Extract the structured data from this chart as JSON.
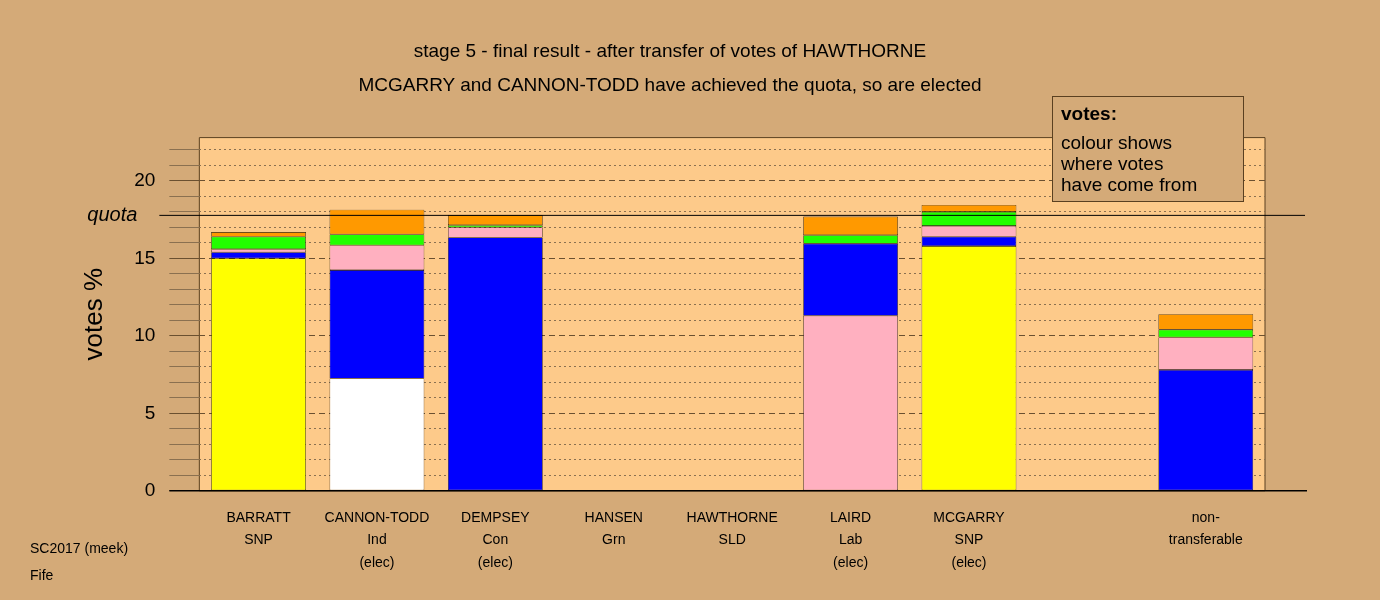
{
  "chart_data": {
    "type": "bar",
    "stacked": true,
    "title": "stage 5 - final result - after transfer of votes of HAWTHORNE",
    "subtitle": "MCGARRY and CANNON-TODD have achieved the quota, so are elected",
    "ylabel": "votes %",
    "categories": [
      "BARRATT\nSNP",
      "CANNON-TODD\nInd\n(elec)",
      "DEMPSEY\nCon\n(elec)",
      "HANSEN\nGrn",
      "HAWTHORNE\nSLD",
      "LAIRD\nLab\n(elec)",
      "MCGARRY\nSNP\n(elec)",
      null,
      "non-\ntransferable"
    ],
    "series": [
      {
        "color": "#ffff00",
        "values": [
          15.0,
          null,
          null,
          null,
          null,
          null,
          15.8,
          null,
          null
        ]
      },
      {
        "color": "#ffffff",
        "values": [
          null,
          7.25,
          null,
          null,
          null,
          null,
          null,
          null,
          null
        ]
      },
      {
        "color": "#ffb0c0",
        "values": [
          null,
          null,
          null,
          null,
          null,
          11.3,
          null,
          null,
          null
        ]
      },
      {
        "color": "#0000ff",
        "values": [
          0.4,
          7.0,
          16.35,
          null,
          null,
          4.65,
          0.6,
          null,
          7.8
        ]
      },
      {
        "color": "#ffb0c0",
        "values": [
          0.2,
          1.6,
          0.65,
          null,
          null,
          null,
          0.7,
          null,
          2.1
        ]
      },
      {
        "color": "#22ff00",
        "values": [
          0.8,
          0.7,
          0.15,
          0,
          null,
          0.55,
          0.9,
          null,
          0.5
        ]
      },
      {
        "color": "#ff9900",
        "values": [
          0.3,
          1.6,
          0.65,
          null,
          0,
          1.2,
          0.45,
          null,
          1.0
        ]
      }
    ],
    "ylim": [
      0,
      22.8
    ],
    "yticks": [
      0,
      {
        "value": 1,
        "label": null
      },
      {
        "value": 2,
        "label": null
      },
      {
        "value": 3,
        "label": null
      },
      {
        "value": 4,
        "label": null
      },
      5,
      {
        "value": 6,
        "label": null
      },
      {
        "value": 7,
        "label": null
      },
      {
        "value": 8,
        "label": null
      },
      {
        "value": 9,
        "label": null
      },
      10,
      {
        "value": 11,
        "label": null
      },
      {
        "value": 12,
        "label": null
      },
      {
        "value": 13,
        "label": null
      },
      {
        "value": 14,
        "label": null
      },
      15,
      {
        "value": 16,
        "label": null
      },
      {
        "value": 17,
        "label": null
      },
      {
        "value": 18,
        "label": null
      },
      {
        "value": 19,
        "label": null
      },
      20,
      {
        "value": 21,
        "label": null
      },
      {
        "value": 22,
        "label": null
      }
    ],
    "grid": "y",
    "legend": false,
    "ref_lines": [
      {
        "axis": "y",
        "value": 17.78,
        "label": "quota",
        "color": "#000000"
      }
    ],
    "annotations": [
      "votes:\ncolour shows\nwhere votes\nhave come from",
      "SC2017 (meek)",
      "Fife"
    ]
  }
}
